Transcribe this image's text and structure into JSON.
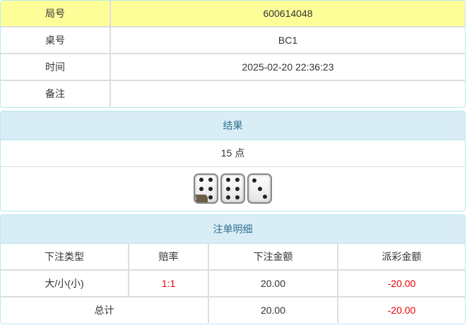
{
  "info": [
    {
      "label": "局号",
      "value": "600614048"
    },
    {
      "label": "桌号",
      "value": "BC1"
    },
    {
      "label": "时间",
      "value": "2025-02-20 22:36:23"
    },
    {
      "label": "备注",
      "value": ""
    }
  ],
  "result": {
    "title": "结果",
    "points": "15 点",
    "dice": [
      6,
      6,
      3
    ],
    "badge": "i"
  },
  "bets": {
    "title": "注单明细",
    "headers": [
      "下注类型",
      "赔率",
      "下注金额",
      "派彩金额"
    ],
    "rows": [
      {
        "type": "大/小(小)",
        "odds": "1:1",
        "amount": "20.00",
        "payout": "-20.00"
      }
    ],
    "total": {
      "label": "总计",
      "amount": "20.00",
      "payout": "-20.00"
    },
    "colors": {
      "negative": "#e00000",
      "odds": "#e00000"
    }
  }
}
